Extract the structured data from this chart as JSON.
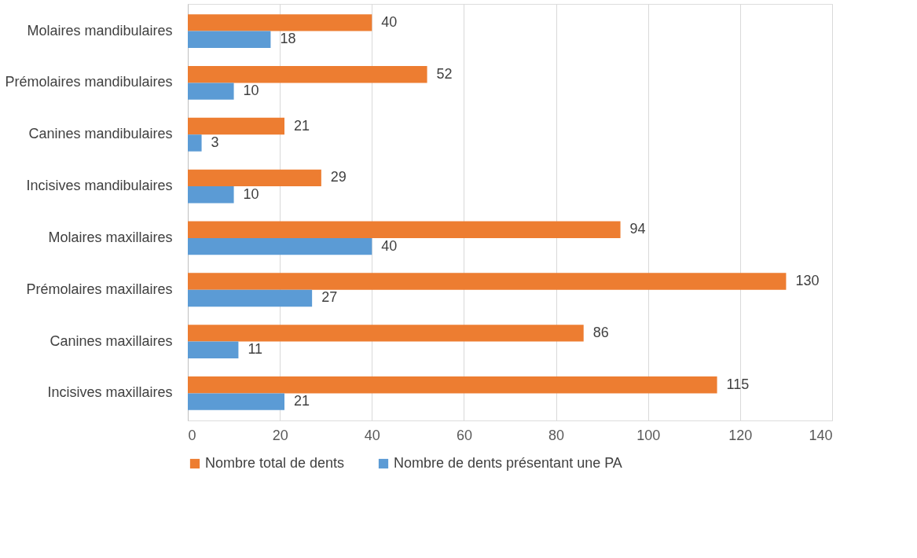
{
  "chart_data": {
    "type": "bar",
    "orientation": "horizontal",
    "categories": [
      "Molaires mandibulaires",
      "Prémolaires mandibulaires",
      "Canines mandibulaires",
      "Incisives mandibulaires",
      "Molaires maxillaires",
      "Prémolaires maxillaires",
      "Canines maxillaires",
      "Incisives maxillaires"
    ],
    "series": [
      {
        "name": "Nombre total de dents",
        "color": "#ed7d31",
        "values": [
          40,
          52,
          21,
          29,
          94,
          130,
          86,
          115
        ]
      },
      {
        "name": "Nombre de dents présentant une PA",
        "color": "#5b9bd5",
        "values": [
          18,
          10,
          3,
          10,
          40,
          27,
          11,
          21
        ]
      }
    ],
    "xlim": [
      0,
      140
    ],
    "xticks": [
      0,
      20,
      40,
      60,
      80,
      100,
      120,
      140
    ],
    "grid": "x",
    "legend": "bottom",
    "data_labels": true
  }
}
